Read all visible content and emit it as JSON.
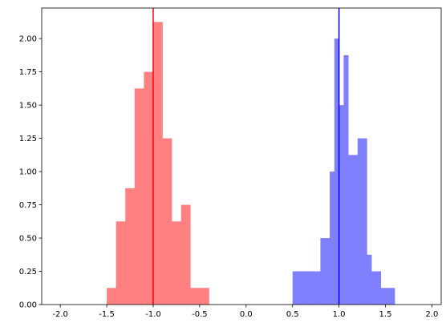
{
  "chart_data": {
    "type": "bar",
    "title": "",
    "xlabel": "",
    "ylabel": "",
    "xlim": [
      -2.2,
      2.1
    ],
    "ylim": [
      0,
      2.23
    ],
    "grid": false,
    "x_ticks": [
      -2.0,
      -1.5,
      -1.0,
      -0.5,
      0.0,
      0.5,
      1.0,
      1.5,
      2.0
    ],
    "x_tick_labels": [
      "-2.0",
      "-1.5",
      "-1.0",
      "-0.5",
      "0.0",
      "0.5",
      "1.0",
      "1.5",
      "2.0"
    ],
    "y_ticks": [
      0.0,
      0.25,
      0.5,
      0.75,
      1.0,
      1.25,
      1.5,
      1.75,
      2.0
    ],
    "y_tick_labels": [
      "0.00",
      "0.25",
      "0.50",
      "0.75",
      "1.00",
      "1.25",
      "1.50",
      "1.75",
      "2.00"
    ],
    "series": [
      {
        "color": "#ff8080",
        "bin_edges": [
          -1.5,
          -1.45,
          -1.4,
          -1.35,
          -1.3,
          -1.25,
          -1.2,
          -1.15,
          -1.1,
          -1.05,
          -1.0,
          -0.95,
          -0.9,
          -0.85,
          -0.8,
          -0.75,
          -0.7,
          -0.65,
          -0.6,
          -0.55,
          -0.5,
          -0.45,
          -0.4
        ],
        "values": [
          0.125,
          0.125,
          0.625,
          0.625,
          0.875,
          0.875,
          1.625,
          1.625,
          1.75,
          1.75,
          2.125,
          2.125,
          1.25,
          1.25,
          0.625,
          0.625,
          0.75,
          0.75,
          0.125,
          0.125,
          0.125,
          0.125
        ]
      },
      {
        "color": "#8080ff",
        "bin_edges": [
          0.5,
          0.55,
          0.6,
          0.65,
          0.7,
          0.75,
          0.8,
          0.85,
          0.9,
          0.95,
          1.0,
          1.05,
          1.1,
          1.15,
          1.2,
          1.25,
          1.3,
          1.35,
          1.4,
          1.45,
          1.5,
          1.55,
          1.6
        ],
        "values": [
          0.25,
          0.25,
          0.25,
          0.25,
          0.25,
          0.25,
          0.5,
          0.5,
          1.0,
          2.0,
          1.5,
          1.875,
          1.125,
          1.125,
          1.25,
          1.25,
          0.375,
          0.25,
          0.25,
          0.125,
          0.125,
          0.125
        ]
      }
    ],
    "vlines": [
      {
        "x": -1.0,
        "color": "#ff0000"
      },
      {
        "x": 1.0,
        "color": "#0000ff"
      }
    ]
  }
}
